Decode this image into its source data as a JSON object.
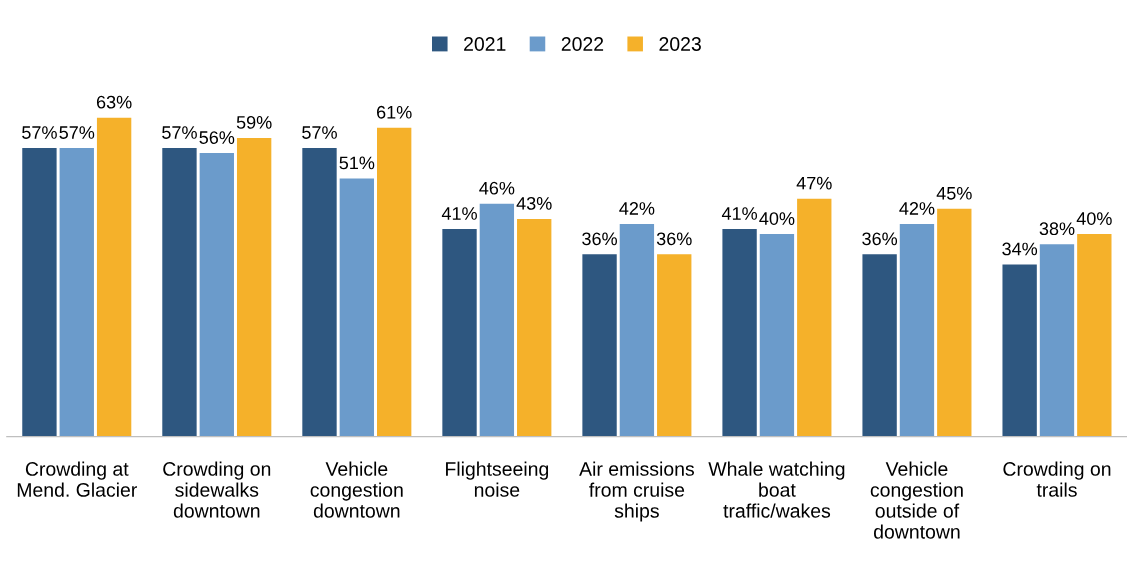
{
  "chart_data": {
    "type": "bar",
    "categories": [
      "Crowding at\nMend. Glacier",
      "Crowding on\nsidewalks\ndowntown",
      "Vehicle\ncongestion\ndowntown",
      "Flightseeing\nnoise",
      "Air emissions\nfrom cruise\nships",
      "Whale watching\nboat\ntraffic/wakes",
      "Vehicle\ncongestion\noutside of\ndowntown",
      "Crowding on\ntrails"
    ],
    "series": [
      {
        "name": "2021",
        "color": "#2e5780",
        "values": [
          57,
          57,
          57,
          41,
          36,
          41,
          36,
          34
        ],
        "value_labels": [
          "57%",
          "57%",
          "57%",
          "41%",
          "36%",
          "41%",
          "36%",
          "34%"
        ]
      },
      {
        "name": "2022",
        "color": "#6b9bcb",
        "values": [
          57,
          56,
          51,
          46,
          42,
          40,
          42,
          38
        ],
        "value_labels": [
          "57%",
          "56%",
          "51%",
          "46%",
          "42%",
          "40%",
          "42%",
          "38%"
        ]
      },
      {
        "name": "2023",
        "color": "#f5b12a",
        "values": [
          63,
          59,
          61,
          43,
          36,
          47,
          45,
          40
        ],
        "value_labels": [
          "63%",
          "59%",
          "61%",
          "43%",
          "36%",
          "47%",
          "45%",
          "40%"
        ]
      }
    ],
    "legend": "top",
    "grid": false
  }
}
